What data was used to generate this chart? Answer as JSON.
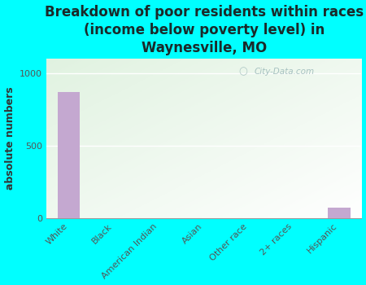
{
  "title": "Breakdown of poor residents within races\n(income below poverty level) in\nWaynesville, MO",
  "ylabel": "absolute numbers",
  "categories": [
    "White",
    "Black",
    "American Indian",
    "Asian",
    "Other race",
    "2+ races",
    "Hispanic"
  ],
  "values": [
    870,
    0,
    0,
    0,
    0,
    0,
    75
  ],
  "bar_color": "#c4a8d0",
  "ylim": [
    0,
    1100
  ],
  "yticks": [
    0,
    500,
    1000
  ],
  "bg_color": "#00ffff",
  "watermark": "City-Data.com",
  "title_fontsize": 12,
  "ylabel_fontsize": 9,
  "tick_fontsize": 8,
  "title_color": "#1a2a2a",
  "label_color": "#555555"
}
